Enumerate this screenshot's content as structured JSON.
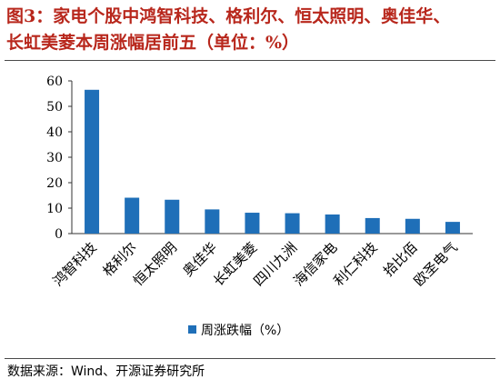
{
  "header": {
    "title_line1": "图3：家电个股中鸿智科技、格利尔、恒太照明、奥佳华、",
    "title_line2": "长虹美菱本周涨幅居前五（单位：%）"
  },
  "chart_data": {
    "type": "bar",
    "categories": [
      "鸿智科技",
      "格利尔",
      "恒太照明",
      "奥佳华",
      "长虹美菱",
      "四川九洲",
      "海信家电",
      "利仁科技",
      "拾比佰",
      "欧圣电气"
    ],
    "series": [
      {
        "name": "周涨跌幅（%）",
        "values": [
          56.5,
          14.1,
          13.3,
          9.5,
          8.2,
          8.0,
          7.5,
          6.1,
          5.8,
          4.6
        ]
      }
    ],
    "ylim": [
      0,
      60
    ],
    "yticks": [
      "0",
      "10",
      "20",
      "30",
      "40",
      "50",
      "60"
    ],
    "grid": false,
    "legend": "bottom",
    "bar_color": "#1f6fb8"
  },
  "footer": {
    "source": "数据来源：Wind、开源证券研究所"
  }
}
